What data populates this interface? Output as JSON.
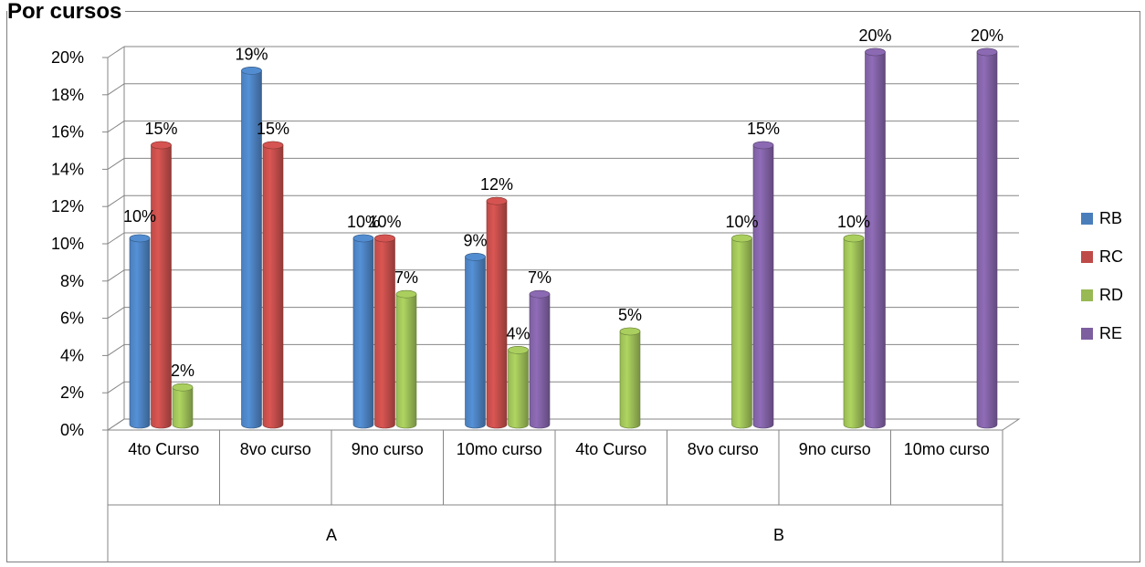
{
  "chart_data": {
    "type": "bar",
    "title": "Por cursos",
    "groups": [
      {
        "label": "A",
        "categories": [
          "4to Curso",
          "8vo curso",
          "9no curso",
          "10mo curso"
        ]
      },
      {
        "label": "B",
        "categories": [
          "4to Curso",
          "8vo curso",
          "9no curso",
          "10mo curso"
        ]
      }
    ],
    "categories": [
      "4to Curso",
      "8vo curso",
      "9no curso",
      "10mo curso",
      "4to Curso",
      "8vo curso",
      "9no curso",
      "10mo curso"
    ],
    "series": [
      {
        "name": "RB",
        "color": "#4a7ebb",
        "values": [
          10,
          19,
          10,
          9,
          null,
          null,
          null,
          null
        ]
      },
      {
        "name": "RC",
        "color": "#be4b48",
        "values": [
          15,
          15,
          10,
          12,
          null,
          null,
          null,
          null
        ]
      },
      {
        "name": "RD",
        "color": "#98b954",
        "values": [
          2,
          null,
          7,
          4,
          5,
          10,
          10,
          null
        ]
      },
      {
        "name": "RE",
        "color": "#7d5fa0",
        "values": [
          null,
          null,
          null,
          7,
          null,
          15,
          20,
          20
        ]
      }
    ],
    "data_labels": [
      [
        {
          "series": "RB",
          "text": "10%"
        },
        {
          "series": "RC",
          "text": "15%"
        },
        {
          "series": "RD",
          "text": "2%"
        }
      ],
      [
        {
          "series": "RB",
          "text": "19%"
        },
        {
          "series": "RC",
          "text": "15%"
        }
      ],
      [
        {
          "series": "RB",
          "text": "10%"
        },
        {
          "series": "RC",
          "text": "10%"
        },
        {
          "series": "RD",
          "text": "7%"
        }
      ],
      [
        {
          "series": "RB",
          "text": "9%"
        },
        {
          "series": "RC",
          "text": "12%"
        },
        {
          "series": "RD",
          "text": "4%"
        },
        {
          "series": "RE",
          "text": "7%"
        }
      ],
      [
        {
          "series": "RD",
          "text": "5%"
        }
      ],
      [
        {
          "series": "RD",
          "text": "10%"
        },
        {
          "series": "RE",
          "text": "15%"
        }
      ],
      [
        {
          "series": "RD",
          "text": "10%"
        },
        {
          "series": "RE",
          "text": "20%"
        }
      ],
      [
        {
          "series": "RE",
          "text": "20%"
        }
      ]
    ],
    "y_ticks": [
      "0%",
      "2%",
      "4%",
      "6%",
      "8%",
      "10%",
      "12%",
      "14%",
      "16%",
      "18%",
      "20%"
    ],
    "ylim": [
      0,
      20
    ],
    "grid": true,
    "legend": "right"
  }
}
